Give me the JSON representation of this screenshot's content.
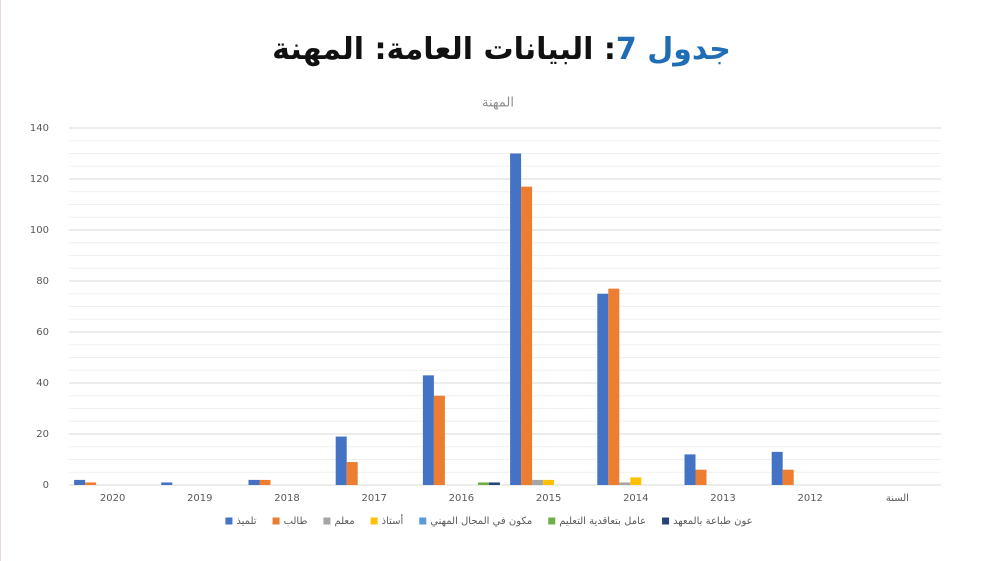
{
  "header": {
    "title_prefix": "جدول 7",
    "title_rest": ": البيانات العامة: المهنة"
  },
  "chart_data": {
    "type": "bar",
    "title": "المهنة",
    "categories": [
      "2020",
      "2019",
      "2018",
      "2017",
      "2016",
      "2015",
      "2014",
      "2013",
      "2012",
      "السنة"
    ],
    "series": [
      {
        "name": "تلميذ",
        "color": "#4472c4",
        "values": [
          2,
          1,
          2,
          19,
          43,
          130,
          75,
          12,
          13,
          null
        ]
      },
      {
        "name": "طالب",
        "color": "#ed7d31",
        "values": [
          1,
          0,
          2,
          9,
          35,
          117,
          77,
          6,
          6,
          null
        ]
      },
      {
        "name": "معلم",
        "color": "#a5a5a5",
        "values": [
          0,
          0,
          0,
          0,
          0,
          2,
          1,
          0,
          0,
          null
        ]
      },
      {
        "name": "أستاذ",
        "color": "#ffc000",
        "values": [
          0,
          0,
          0,
          0,
          0,
          2,
          3,
          0,
          0,
          null
        ]
      },
      {
        "name": "مكون في المجال المهني",
        "color": "#5b9bd5",
        "values": [
          0,
          0,
          0,
          0,
          0,
          0,
          0,
          0,
          0,
          null
        ]
      },
      {
        "name": "عامل بتعاقدية التعليم",
        "color": "#70ad47",
        "values": [
          0,
          0,
          0,
          0,
          1,
          0,
          0,
          0,
          0,
          null
        ]
      },
      {
        "name": "عون طباعة بالمعهد",
        "color": "#264478",
        "values": [
          0,
          0,
          0,
          0,
          1,
          0,
          0,
          0,
          0,
          null
        ]
      }
    ],
    "ylim": [
      0,
      140
    ],
    "yticks": [
      0,
      20,
      40,
      60,
      80,
      100,
      120,
      140
    ],
    "grid": true,
    "legend": "bottom"
  }
}
